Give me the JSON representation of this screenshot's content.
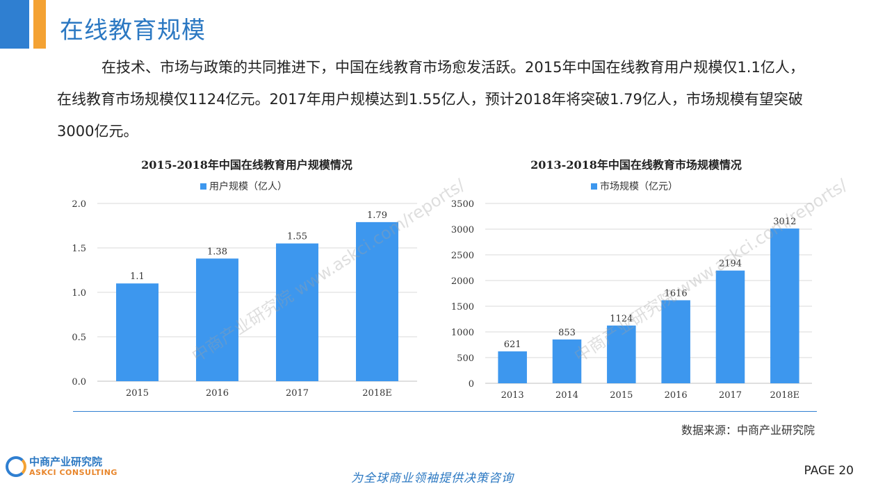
{
  "header": {
    "title": "在线教育规模"
  },
  "intro": "在技术、市场与政策的共同推进下，中国在线教育市场愈发活跃。2015年中国在线教育用户规模仅1.1亿人，在线教育市场规模仅1124亿元。2017年用户规模达到1.55亿人，预计2018年将突破1.79亿人，市场规模有望突破3000亿元。",
  "colors": {
    "accent": "#2f7fd1",
    "bar": "#3d97ee",
    "orange": "#f4a233"
  },
  "chart_data": [
    {
      "type": "bar",
      "title": "2015-2018年中国在线教育用户规模情况",
      "legend": "用户规模（亿人）",
      "categories": [
        "2015",
        "2016",
        "2017",
        "2018E"
      ],
      "values": [
        1.1,
        1.38,
        1.55,
        1.79
      ],
      "value_labels": [
        "1.1",
        "1.38",
        "1.55",
        "1.79"
      ],
      "ylim": [
        0,
        2.0
      ],
      "yticks": [
        "0.0",
        "0.5",
        "1.0",
        "1.5",
        "2.0"
      ],
      "ytick_values": [
        0,
        0.5,
        1.0,
        1.5,
        2.0
      ],
      "grid": true,
      "legend_position": "top"
    },
    {
      "type": "bar",
      "title": "2013-2018年中国在线教育市场规模情况",
      "legend": "市场规模（亿元）",
      "categories": [
        "2013",
        "2014",
        "2015",
        "2016",
        "2017",
        "2018E"
      ],
      "values": [
        621,
        853,
        1124,
        1616,
        2194,
        3012
      ],
      "value_labels": [
        "621",
        "853",
        "1124",
        "1616",
        "2194",
        "3012"
      ],
      "ylim": [
        0,
        3500
      ],
      "yticks": [
        "0",
        "500",
        "1000",
        "1500",
        "2000",
        "2500",
        "3000",
        "3500"
      ],
      "ytick_values": [
        0,
        500,
        1000,
        1500,
        2000,
        2500,
        3000,
        3500
      ],
      "grid": true,
      "legend_position": "top"
    }
  ],
  "watermark": "中商产业研究院 www.askci.com/reports/",
  "footer": {
    "source": "数据来源：中商产业研究院",
    "logo_cn": "中商产业研究院",
    "logo_en": "ASKCI CONSULTING",
    "slogan": "为全球商业领袖提供决策咨询",
    "page": "PAGE  20"
  }
}
